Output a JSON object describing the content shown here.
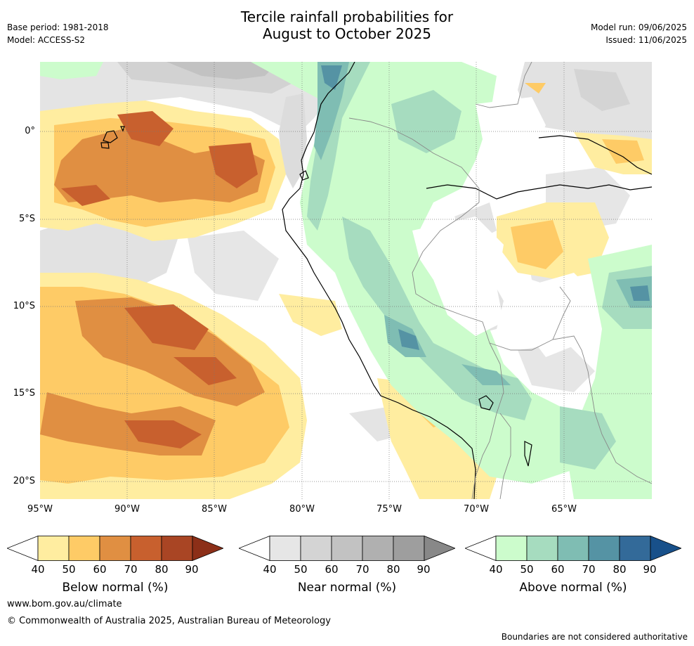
{
  "title": {
    "line1": "Tercile rainfall probabilities for",
    "line2": "August to October 2025"
  },
  "meta": {
    "base_period": "Base period: 1981-2018",
    "model": "Model: ACCESS-S2",
    "model_run": "Model run: 09/06/2025",
    "issued": "Issued: 11/06/2025"
  },
  "map": {
    "lat_labels": [
      "0°",
      "5°S",
      "10°S",
      "15°S",
      "20°S"
    ],
    "lon_labels": [
      "95°W",
      "90°W",
      "85°W",
      "80°W",
      "75°W",
      "70°W",
      "65°W"
    ]
  },
  "colorbars": [
    {
      "title": "Below normal (%)",
      "ticks": [
        "40",
        "50",
        "60",
        "70",
        "80",
        "90"
      ],
      "colors": [
        "#ffffff",
        "#ffeda0",
        "#fecb66",
        "#e08f42",
        "#c8602e",
        "#a94524",
        "#8c2f18"
      ]
    },
    {
      "title": "Near normal (%)",
      "ticks": [
        "40",
        "50",
        "60",
        "70",
        "80",
        "90"
      ],
      "colors": [
        "#ffffff",
        "#e6e6e6",
        "#d4d4d4",
        "#c2c2c2",
        "#b0b0b0",
        "#9e9e9e",
        "#888888"
      ]
    },
    {
      "title": "Above normal (%)",
      "ticks": [
        "40",
        "50",
        "60",
        "70",
        "80",
        "90"
      ],
      "colors": [
        "#ffffff",
        "#ccfccc",
        "#a6dcbf",
        "#7fbdb3",
        "#5593a4",
        "#336a99",
        "#18508a"
      ]
    }
  ],
  "footer": {
    "url": "www.bom.gov.au/climate",
    "copyright": "© Commonwealth of Australia 2025, Australian Bureau of Meteorology",
    "disclaimer": "Boundaries are not considered authoritative"
  }
}
